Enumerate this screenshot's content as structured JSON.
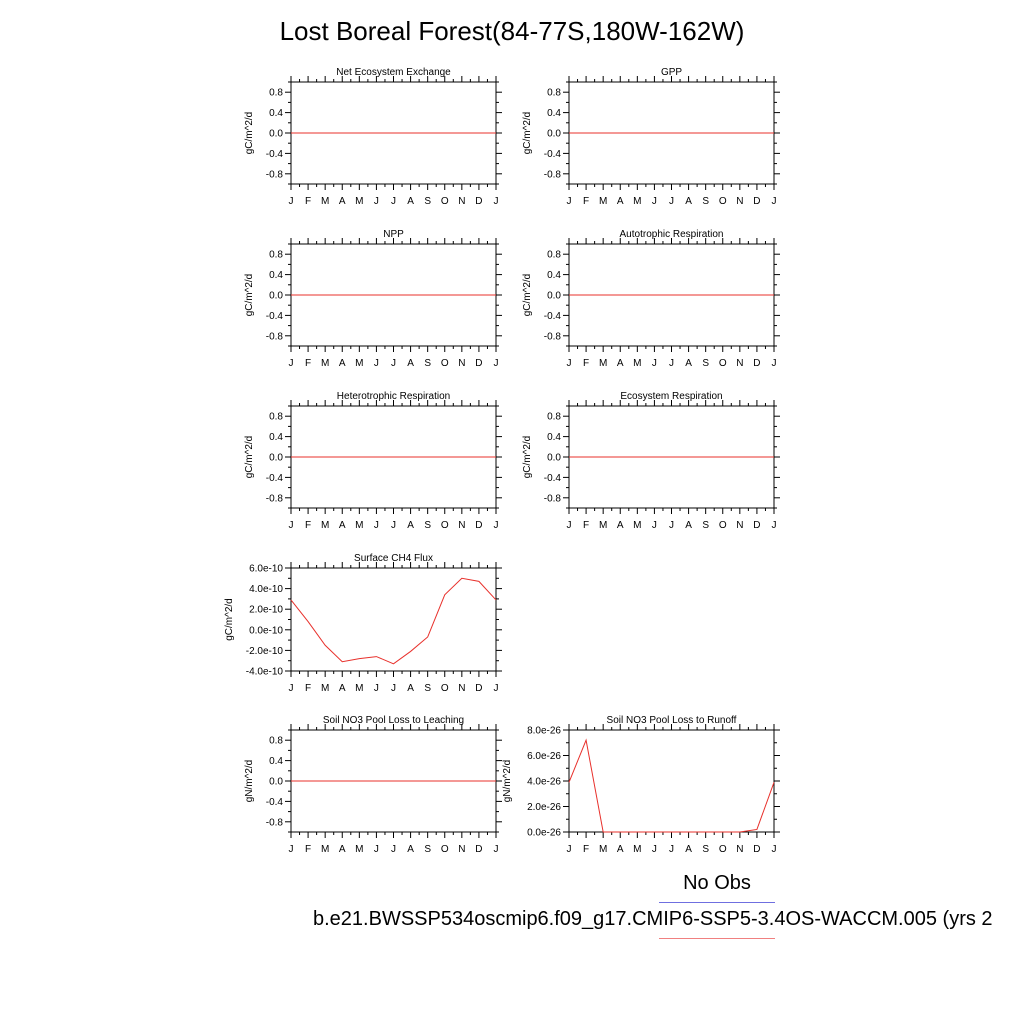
{
  "title": "Lost Boreal Forest(84-77S,180W-162W)",
  "legend": {
    "title": "No Obs",
    "case_label": "b.e21.BWSSP534oscmip6.f09_g17.CMIP6-SSP5-3.4OS-WACCM.005 (yrs 2",
    "model_color": "#f08080",
    "obs_color": "#6f6fe0"
  },
  "chart_data": [
    {
      "type": "line",
      "title": "Net Ecosystem Exchange",
      "ylabel": "gC/m^2/d",
      "x": [
        "J",
        "F",
        "M",
        "A",
        "M",
        "J",
        "J",
        "A",
        "S",
        "O",
        "N",
        "D",
        "J"
      ],
      "ylim": [
        -1.0,
        1.0
      ],
      "yticks": [
        0.8,
        0.4,
        0.0,
        -0.4,
        -0.8
      ],
      "ytick_labels": [
        "0.8",
        "0.4",
        "0.0",
        "-0.4",
        "-0.8"
      ],
      "series": [
        {
          "values": [
            0,
            0,
            0,
            0,
            0,
            0,
            0,
            0,
            0,
            0,
            0,
            0,
            0
          ],
          "color": "#e8302b"
        }
      ]
    },
    {
      "type": "line",
      "title": "GPP",
      "ylabel": "gC/m^2/d",
      "x": [
        "J",
        "F",
        "M",
        "A",
        "M",
        "J",
        "J",
        "A",
        "S",
        "O",
        "N",
        "D",
        "J"
      ],
      "ylim": [
        -1.0,
        1.0
      ],
      "yticks": [
        0.8,
        0.4,
        0.0,
        -0.4,
        -0.8
      ],
      "ytick_labels": [
        "0.8",
        "0.4",
        "0.0",
        "-0.4",
        "-0.8"
      ],
      "series": [
        {
          "values": [
            0,
            0,
            0,
            0,
            0,
            0,
            0,
            0,
            0,
            0,
            0,
            0,
            0
          ],
          "color": "#e8302b"
        }
      ]
    },
    {
      "type": "line",
      "title": "NPP",
      "ylabel": "gC/m^2/d",
      "x": [
        "J",
        "F",
        "M",
        "A",
        "M",
        "J",
        "J",
        "A",
        "S",
        "O",
        "N",
        "D",
        "J"
      ],
      "ylim": [
        -1.0,
        1.0
      ],
      "yticks": [
        0.8,
        0.4,
        0.0,
        -0.4,
        -0.8
      ],
      "ytick_labels": [
        "0.8",
        "0.4",
        "0.0",
        "-0.4",
        "-0.8"
      ],
      "series": [
        {
          "values": [
            0,
            0,
            0,
            0,
            0,
            0,
            0,
            0,
            0,
            0,
            0,
            0,
            0
          ],
          "color": "#e8302b"
        }
      ]
    },
    {
      "type": "line",
      "title": "Autotrophic Respiration",
      "ylabel": "gC/m^2/d",
      "x": [
        "J",
        "F",
        "M",
        "A",
        "M",
        "J",
        "J",
        "A",
        "S",
        "O",
        "N",
        "D",
        "J"
      ],
      "ylim": [
        -1.0,
        1.0
      ],
      "yticks": [
        0.8,
        0.4,
        0.0,
        -0.4,
        -0.8
      ],
      "ytick_labels": [
        "0.8",
        "0.4",
        "0.0",
        "-0.4",
        "-0.8"
      ],
      "series": [
        {
          "values": [
            0,
            0,
            0,
            0,
            0,
            0,
            0,
            0,
            0,
            0,
            0,
            0,
            0
          ],
          "color": "#e8302b"
        }
      ]
    },
    {
      "type": "line",
      "title": "Heterotrophic Respiration",
      "ylabel": "gC/m^2/d",
      "x": [
        "J",
        "F",
        "M",
        "A",
        "M",
        "J",
        "J",
        "A",
        "S",
        "O",
        "N",
        "D",
        "J"
      ],
      "ylim": [
        -1.0,
        1.0
      ],
      "yticks": [
        0.8,
        0.4,
        0.0,
        -0.4,
        -0.8
      ],
      "ytick_labels": [
        "0.8",
        "0.4",
        "0.0",
        "-0.4",
        "-0.8"
      ],
      "series": [
        {
          "values": [
            0,
            0,
            0,
            0,
            0,
            0,
            0,
            0,
            0,
            0,
            0,
            0,
            0
          ],
          "color": "#e8302b"
        }
      ]
    },
    {
      "type": "line",
      "title": "Ecosystem Respiration",
      "ylabel": "gC/m^2/d",
      "x": [
        "J",
        "F",
        "M",
        "A",
        "M",
        "J",
        "J",
        "A",
        "S",
        "O",
        "N",
        "D",
        "J"
      ],
      "ylim": [
        -1.0,
        1.0
      ],
      "yticks": [
        0.8,
        0.4,
        0.0,
        -0.4,
        -0.8
      ],
      "ytick_labels": [
        "0.8",
        "0.4",
        "0.0",
        "-0.4",
        "-0.8"
      ],
      "series": [
        {
          "values": [
            0,
            0,
            0,
            0,
            0,
            0,
            0,
            0,
            0,
            0,
            0,
            0,
            0
          ],
          "color": "#e8302b"
        }
      ]
    },
    {
      "type": "line",
      "title": "Surface CH4 Flux",
      "ylabel": "gC/m^2/d",
      "x": [
        "J",
        "F",
        "M",
        "A",
        "M",
        "J",
        "J",
        "A",
        "S",
        "O",
        "N",
        "D",
        "J"
      ],
      "ylim": [
        -4e-10,
        6e-10
      ],
      "yticks": [
        6e-10,
        4e-10,
        2e-10,
        0.0,
        -2e-10,
        -4e-10
      ],
      "ytick_labels": [
        "6.0e-10",
        "4.0e-10",
        "2.0e-10",
        "0.0e-10",
        "-2.0e-10",
        "-4.0e-10"
      ],
      "series": [
        {
          "values": [
            2.9e-10,
            8e-11,
            -1.5e-10,
            -3.1e-10,
            -2.8e-10,
            -2.6e-10,
            -3.3e-10,
            -2.1e-10,
            -7e-11,
            3.4e-10,
            5e-10,
            4.7e-10,
            2.9e-10
          ],
          "color": "#e8302b"
        }
      ]
    },
    {
      "type": "line",
      "title": "Soil NO3 Pool Loss to Leaching",
      "ylabel": "gN/m^2/d",
      "x": [
        "J",
        "F",
        "M",
        "A",
        "M",
        "J",
        "J",
        "A",
        "S",
        "O",
        "N",
        "D",
        "J"
      ],
      "ylim": [
        -1.0,
        1.0
      ],
      "yticks": [
        0.8,
        0.4,
        0.0,
        -0.4,
        -0.8
      ],
      "ytick_labels": [
        "0.8",
        "0.4",
        "0.0",
        "-0.4",
        "-0.8"
      ],
      "series": [
        {
          "values": [
            0,
            0,
            0,
            0,
            0,
            0,
            0,
            0,
            0,
            0,
            0,
            0,
            0
          ],
          "color": "#e8302b"
        }
      ]
    },
    {
      "type": "line",
      "title": "Soil NO3 Pool Loss to Runoff",
      "ylabel": "gN/m^2/d",
      "x": [
        "J",
        "F",
        "M",
        "A",
        "M",
        "J",
        "J",
        "A",
        "S",
        "O",
        "N",
        "D",
        "J"
      ],
      "ylim": [
        0.0,
        8e-26
      ],
      "yticks": [
        8e-26,
        6e-26,
        4e-26,
        2e-26,
        0.0
      ],
      "ytick_labels": [
        "8.0e-26",
        "6.0e-26",
        "4.0e-26",
        "2.0e-26",
        "0.0e-26"
      ],
      "series": [
        {
          "values": [
            3.9e-26,
            7.2e-26,
            0.0,
            0.0,
            0.0,
            0.0,
            0.0,
            0.0,
            0.0,
            0.0,
            0.0,
            2e-27,
            3.9e-26
          ],
          "color": "#e8302b"
        }
      ]
    }
  ]
}
